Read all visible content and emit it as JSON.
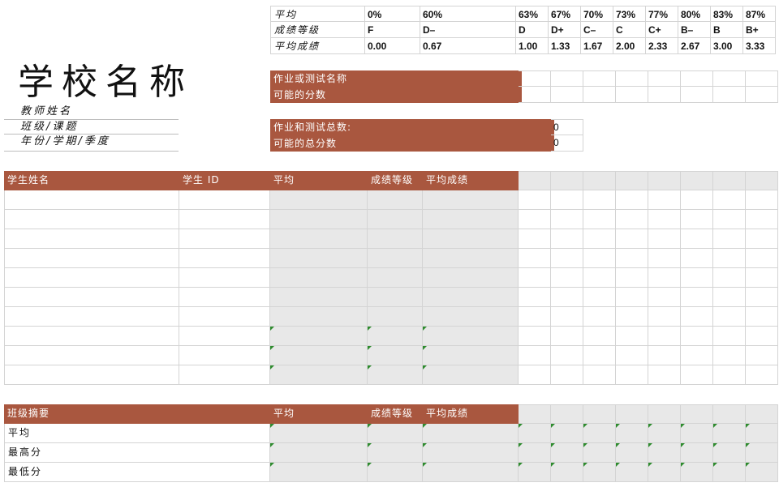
{
  "grade_table": {
    "row_labels": [
      "平均",
      "成绩等级",
      "平均成绩"
    ],
    "columns": [
      {
        "pct": "0%",
        "letter": "F",
        "gpa": "0.00"
      },
      {
        "pct": "60%",
        "letter": "D–",
        "gpa": "0.67"
      },
      {
        "pct": "63%",
        "letter": "D",
        "gpa": "1.00"
      },
      {
        "pct": "67%",
        "letter": "D+",
        "gpa": "1.33"
      },
      {
        "pct": "70%",
        "letter": "C–",
        "gpa": "1.67"
      },
      {
        "pct": "73%",
        "letter": "C",
        "gpa": "2.00"
      },
      {
        "pct": "77%",
        "letter": "C+",
        "gpa": "2.33"
      },
      {
        "pct": "80%",
        "letter": "B–",
        "gpa": "2.67"
      },
      {
        "pct": "83%",
        "letter": "B",
        "gpa": "3.00"
      },
      {
        "pct": "87%",
        "letter": "B+",
        "gpa": "3.33"
      }
    ]
  },
  "header": {
    "school_name": "学校名称",
    "teacher_name": "教师姓名",
    "class_subject": "班级/课题",
    "year_term": "年份/学期/季度"
  },
  "assignment": {
    "name_label": "作业或测试名称",
    "possible_points_label": "可能的分数"
  },
  "totals": {
    "total_count_label": "作业和测试总数:",
    "total_count_value": "0",
    "total_points_label": "可能的总分数",
    "total_points_value": "0"
  },
  "students_table": {
    "headers": [
      "学生姓名",
      "学生 ID",
      "平均",
      "成绩等级",
      "平均成绩"
    ],
    "row_count": 10
  },
  "summary_table": {
    "headers": [
      "班级摘要",
      "平均",
      "成绩等级",
      "平均成绩"
    ],
    "rows": [
      "平均",
      "最高分",
      "最低分"
    ]
  }
}
